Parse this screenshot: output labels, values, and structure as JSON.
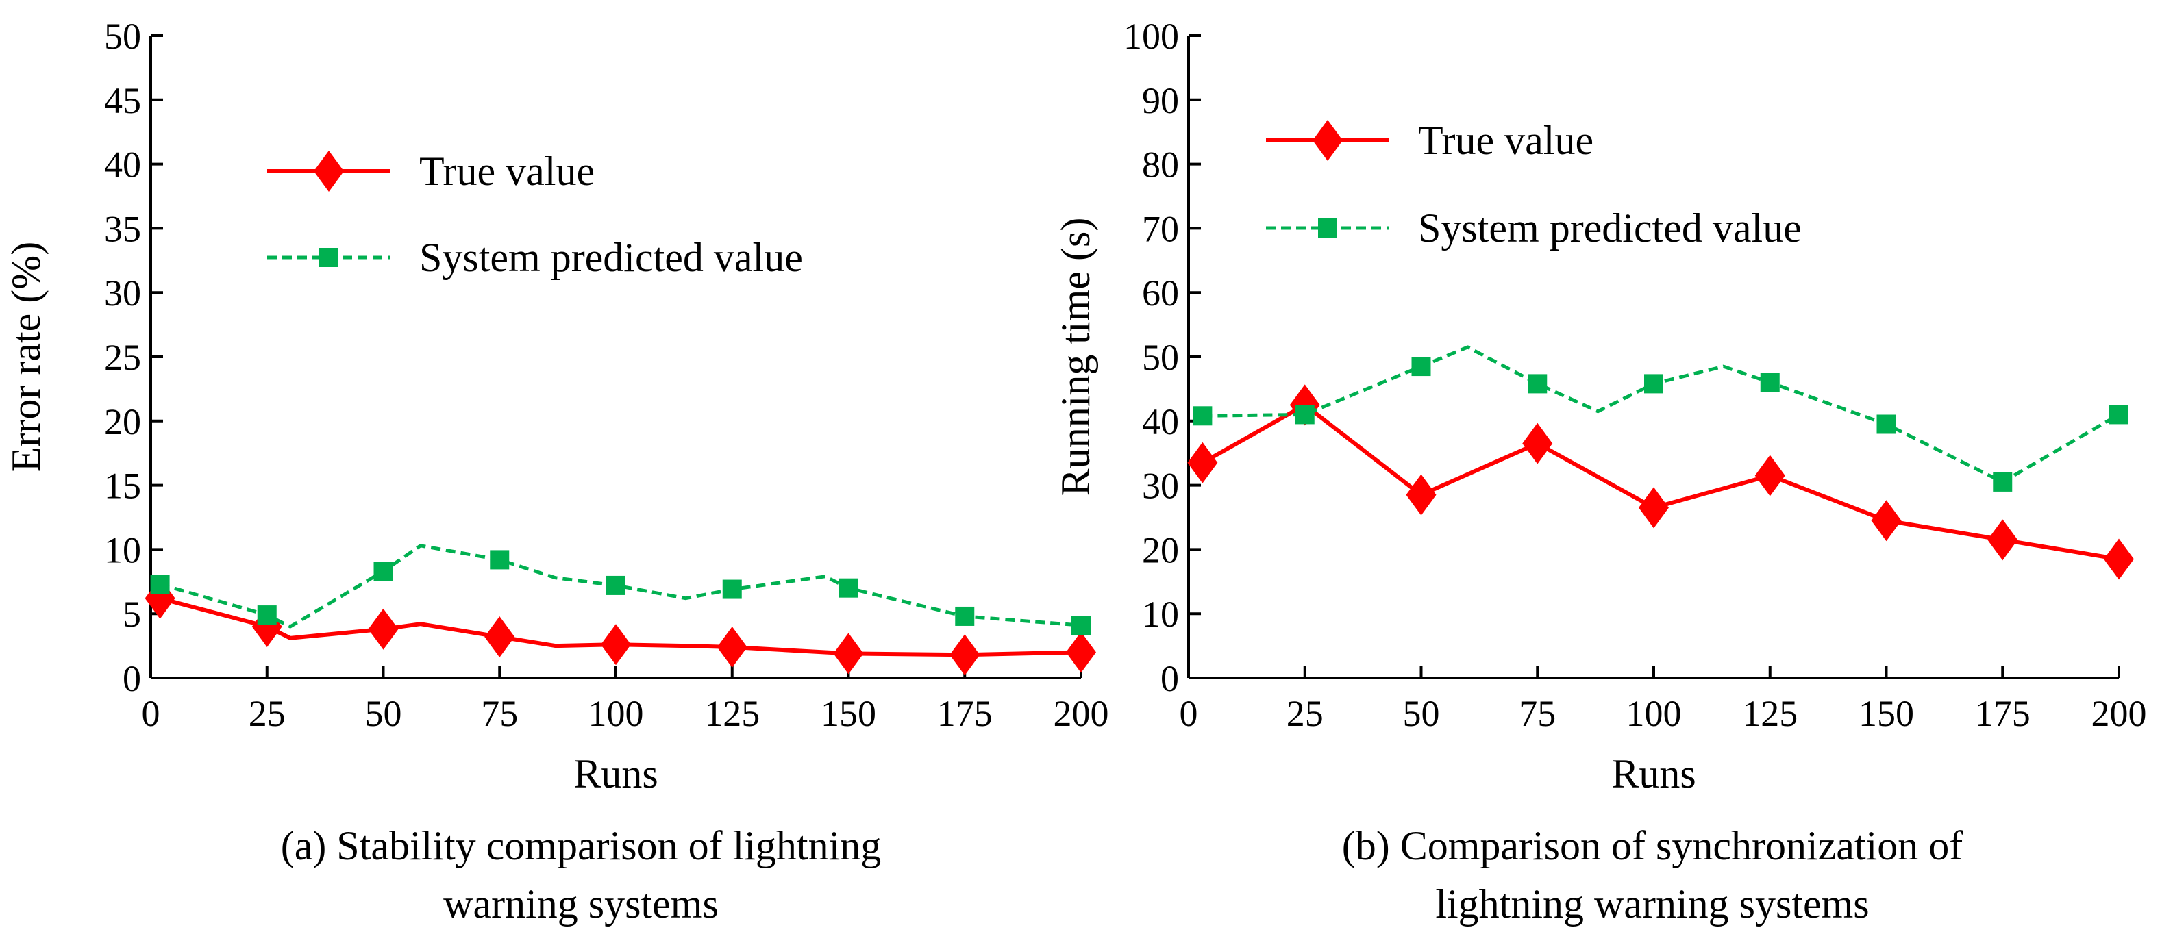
{
  "chart_data": [
    {
      "type": "line",
      "caption_lines": [
        "(a) Stability comparison of lightning",
        "warning systems"
      ],
      "xlabel": "Runs",
      "ylabel": "Error rate (%)",
      "xlim": [
        0,
        200
      ],
      "ylim": [
        0,
        50
      ],
      "xticks": [
        "0",
        "25",
        "50",
        "75",
        "100",
        "125",
        "150",
        "175",
        "200"
      ],
      "yticks": [
        "0",
        "5",
        "10",
        "15",
        "20",
        "25",
        "30",
        "35",
        "40",
        "45",
        "50"
      ],
      "grid": false,
      "legend_position": "top-left",
      "series": [
        {
          "name": "True value",
          "color": "#FF0000",
          "line_style": "solid",
          "marker": "diamond",
          "line_x": [
            2,
            25,
            30,
            50,
            58,
            75,
            87,
            100,
            115,
            125,
            150,
            175,
            200
          ],
          "line_y": [
            6.2,
            4.0,
            3.1,
            3.8,
            4.2,
            3.2,
            2.5,
            2.6,
            2.5,
            2.4,
            1.9,
            1.8,
            2.0
          ],
          "marker_x": [
            2,
            25,
            50,
            75,
            100,
            125,
            150,
            175,
            200
          ],
          "marker_y": [
            6.2,
            4.0,
            3.8,
            3.2,
            2.6,
            2.4,
            1.9,
            1.8,
            2.0
          ]
        },
        {
          "name": "System predicted value",
          "color": "#00B050",
          "line_style": "dashed",
          "marker": "square",
          "line_x": [
            2,
            25,
            30,
            50,
            58,
            75,
            87,
            100,
            115,
            125,
            145,
            150,
            175,
            200
          ],
          "line_y": [
            7.3,
            4.9,
            4.0,
            8.3,
            10.3,
            9.2,
            7.8,
            7.2,
            6.2,
            6.9,
            7.9,
            7.0,
            4.8,
            4.1
          ],
          "marker_x": [
            2,
            25,
            50,
            75,
            100,
            125,
            150,
            175,
            200
          ],
          "marker_y": [
            7.3,
            4.9,
            8.3,
            9.2,
            7.2,
            6.9,
            7.0,
            4.8,
            4.1
          ]
        }
      ]
    },
    {
      "type": "line",
      "caption_lines": [
        "(b) Comparison of synchronization of",
        "lightning warning systems"
      ],
      "xlabel": "Runs",
      "ylabel": "Running time (s)",
      "xlim": [
        0,
        200
      ],
      "ylim": [
        0,
        100
      ],
      "xticks": [
        "0",
        "25",
        "50",
        "75",
        "100",
        "125",
        "150",
        "175",
        "200"
      ],
      "yticks": [
        "0",
        "10",
        "20",
        "30",
        "40",
        "50",
        "60",
        "70",
        "80",
        "90",
        "100"
      ],
      "grid": false,
      "legend_position": "top-left",
      "series": [
        {
          "name": "True value",
          "color": "#FF0000",
          "line_style": "solid",
          "marker": "diamond",
          "line_x": [
            3,
            25,
            50,
            75,
            100,
            125,
            150,
            175,
            200
          ],
          "line_y": [
            33.5,
            42.5,
            28.5,
            36.5,
            26.5,
            31.5,
            24.5,
            21.5,
            18.5
          ],
          "marker_x": [
            3,
            25,
            50,
            75,
            100,
            125,
            150,
            175,
            200
          ],
          "marker_y": [
            33.5,
            42.5,
            28.5,
            36.5,
            26.5,
            31.5,
            24.5,
            21.5,
            18.5
          ]
        },
        {
          "name": "System predicted value",
          "color": "#00B050",
          "line_style": "dashed",
          "marker": "square",
          "line_x": [
            3,
            25,
            50,
            60,
            75,
            88,
            100,
            115,
            125,
            150,
            175,
            200
          ],
          "line_y": [
            40.8,
            41.0,
            48.5,
            51.5,
            45.8,
            41.5,
            45.8,
            48.5,
            46.0,
            39.5,
            30.5,
            41.0
          ],
          "marker_x": [
            3,
            25,
            50,
            75,
            100,
            125,
            150,
            175,
            200
          ],
          "marker_y": [
            40.8,
            41.0,
            48.5,
            45.8,
            45.8,
            46.0,
            39.5,
            30.5,
            41.0
          ]
        }
      ]
    }
  ]
}
